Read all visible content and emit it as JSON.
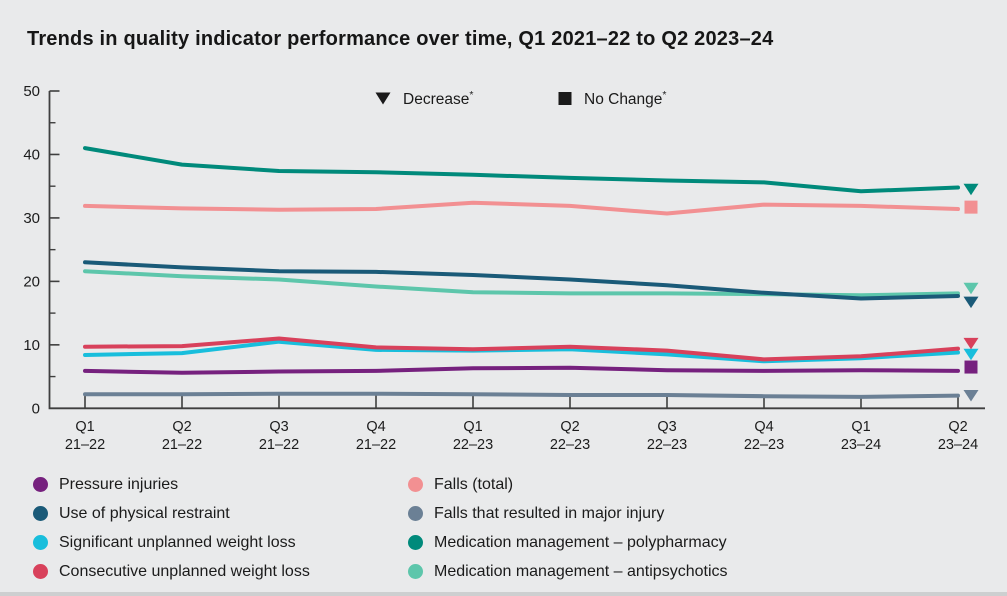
{
  "title": "Trends in quality indicator performance over time, Q1 2021–22 to Q2 2023–24",
  "chart_data": {
    "type": "line",
    "title": "Trends in quality indicator performance over time, Q1 2021–22 to Q2 2023–24",
    "categories": [
      {
        "quarter": "Q1",
        "years": "21–22"
      },
      {
        "quarter": "Q2",
        "years": "21–22"
      },
      {
        "quarter": "Q3",
        "years": "21–22"
      },
      {
        "quarter": "Q4",
        "years": "21–22"
      },
      {
        "quarter": "Q1",
        "years": "22–23"
      },
      {
        "quarter": "Q2",
        "years": "22–23"
      },
      {
        "quarter": "Q3",
        "years": "22–23"
      },
      {
        "quarter": "Q4",
        "years": "22–23"
      },
      {
        "quarter": "Q1",
        "years": "23–24"
      },
      {
        "quarter": "Q2",
        "years": "23–24"
      }
    ],
    "ylim": [
      0,
      50
    ],
    "yticks": [
      0,
      10,
      20,
      30,
      40,
      50
    ],
    "minor_yticks": [
      5,
      15,
      25,
      35,
      45
    ],
    "grid": false,
    "legend_position": "bottom",
    "annotations": [
      {
        "symbol": "triangle-down",
        "label": "Decrease",
        "sup": "*",
        "color": "#1a1a1a"
      },
      {
        "symbol": "square",
        "label": "No Change",
        "sup": "*",
        "color": "#1a1a1a"
      }
    ],
    "series": [
      {
        "name": "Pressure injuries",
        "color": "#76217E",
        "end_marker": "square",
        "marker_value": 6.5,
        "values": [
          5.9,
          5.6,
          5.8,
          5.9,
          6.3,
          6.4,
          6.0,
          5.9,
          6.0,
          5.9
        ]
      },
      {
        "name": "Use of physical restraint",
        "color": "#1A5A78",
        "end_marker": "triangle-down",
        "marker_value": 16.8,
        "values": [
          23.0,
          22.2,
          21.6,
          21.5,
          21.0,
          20.3,
          19.4,
          18.2,
          17.3,
          17.7
        ]
      },
      {
        "name": "Significant unplanned weight loss",
        "color": "#18BEDC",
        "end_marker": "triangle-down",
        "marker_value": 8.6,
        "values": [
          8.4,
          8.7,
          10.5,
          9.2,
          9.1,
          9.3,
          8.5,
          7.4,
          7.9,
          8.8
        ]
      },
      {
        "name": "Consecutive unplanned weight loss",
        "color": "#D8415B",
        "end_marker": "triangle-down",
        "marker_value": 10.3,
        "values": [
          9.7,
          9.8,
          11.0,
          9.6,
          9.3,
          9.7,
          9.1,
          7.7,
          8.2,
          9.4
        ]
      },
      {
        "name": "Falls (total)",
        "color": "#F29092",
        "end_marker": "square",
        "marker_value": 31.7,
        "values": [
          31.9,
          31.5,
          31.3,
          31.4,
          32.4,
          31.9,
          30.7,
          32.1,
          31.9,
          31.4
        ]
      },
      {
        "name": "Falls that resulted in major injury",
        "color": "#6B8095",
        "end_marker": "triangle-down",
        "marker_value": 2.1,
        "values": [
          2.2,
          2.2,
          2.3,
          2.3,
          2.2,
          2.1,
          2.1,
          1.9,
          1.8,
          2.0
        ]
      },
      {
        "name": "Medication management – polypharmacy",
        "color": "#008A7B",
        "end_marker": "triangle-down",
        "marker_value": 34.6,
        "values": [
          41.0,
          38.4,
          37.4,
          37.2,
          36.8,
          36.3,
          35.9,
          35.6,
          34.2,
          34.8
        ]
      },
      {
        "name": "Medication management – antipsychotics",
        "color": "#5DC6AB",
        "end_marker": "triangle-down",
        "marker_value": 19.0,
        "values": [
          21.6,
          20.8,
          20.3,
          19.2,
          18.3,
          18.1,
          18.1,
          18.0,
          17.8,
          18.1
        ]
      }
    ]
  },
  "legend": {
    "columns": [
      {
        "series_indexes": [
          0,
          1,
          2,
          3
        ]
      },
      {
        "series_indexes": [
          4,
          5,
          6,
          7
        ]
      }
    ]
  }
}
